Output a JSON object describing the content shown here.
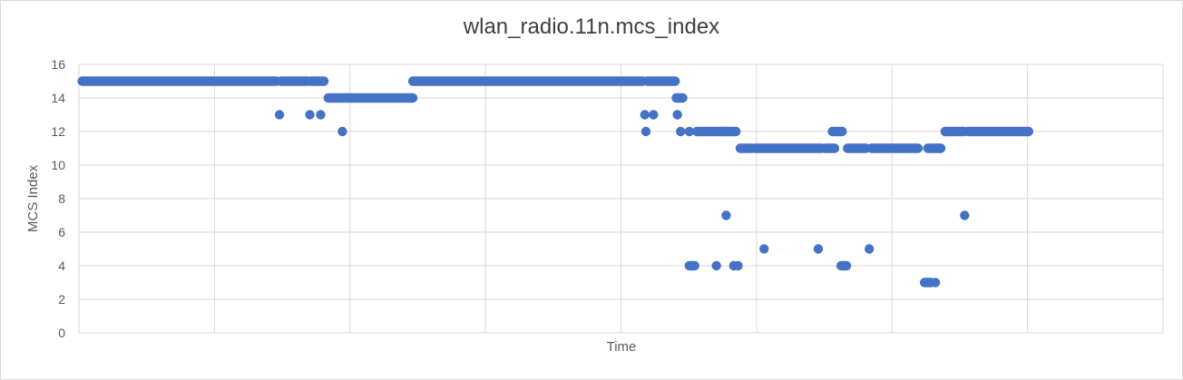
{
  "chart_data": {
    "type": "scatter",
    "title": "wlan_radio.11n.mcs_index",
    "xlabel": "Time",
    "ylabel": "MCS Index",
    "ylim": [
      0,
      16
    ],
    "yticks": [
      0,
      2,
      4,
      6,
      8,
      10,
      12,
      14,
      16
    ],
    "xlim": [
      0,
      1000
    ],
    "x_gridlines": [
      0,
      125,
      250,
      375,
      500,
      625,
      750,
      875,
      1000
    ],
    "series": [
      {
        "name": "wlan_radio.11n.mcs_index",
        "color": "#4472c4",
        "segments": [
          {
            "x_start": 3,
            "x_end": 182,
            "y": 15
          },
          {
            "x_start": 186,
            "x_end": 211,
            "y": 15
          },
          {
            "x_start": 214,
            "x_end": 226,
            "y": 15
          },
          {
            "x_start": 230,
            "x_end": 308,
            "y": 14
          },
          {
            "x_start": 308,
            "x_end": 520,
            "y": 15
          },
          {
            "x_start": 524,
            "x_end": 550,
            "y": 15
          },
          {
            "x_start": 551,
            "x_end": 557,
            "y": 14
          },
          {
            "x_start": 570,
            "x_end": 606,
            "y": 12
          },
          {
            "x_start": 610,
            "x_end": 620,
            "y": 11
          },
          {
            "x_start": 623,
            "x_end": 685,
            "y": 11
          },
          {
            "x_start": 688,
            "x_end": 697,
            "y": 11
          },
          {
            "x_start": 695,
            "x_end": 704,
            "y": 12
          },
          {
            "x_start": 709,
            "x_end": 726,
            "y": 11
          },
          {
            "x_start": 731,
            "x_end": 774,
            "y": 11
          },
          {
            "x_start": 783,
            "x_end": 795,
            "y": 11
          },
          {
            "x_start": 799,
            "x_end": 816,
            "y": 12
          },
          {
            "x_start": 820,
            "x_end": 876,
            "y": 12
          },
          {
            "x_start": 563,
            "x_end": 568,
            "y": 4
          },
          {
            "x_start": 703,
            "x_end": 708,
            "y": 4
          },
          {
            "x_start": 780,
            "x_end": 786,
            "y": 3
          }
        ],
        "points": [
          [
            185,
            13
          ],
          [
            213,
            13
          ],
          [
            223,
            13
          ],
          [
            243,
            12
          ],
          [
            522,
            13
          ],
          [
            523,
            12
          ],
          [
            530,
            13
          ],
          [
            552,
            13
          ],
          [
            555,
            12
          ],
          [
            563,
            12
          ],
          [
            588,
            4
          ],
          [
            594,
            12
          ],
          [
            597,
            7
          ],
          [
            604,
            4
          ],
          [
            608,
            4
          ],
          [
            632,
            5
          ],
          [
            682,
            5
          ],
          [
            729,
            5
          ],
          [
            790,
            3
          ],
          [
            794,
            11
          ],
          [
            817,
            7
          ]
        ]
      }
    ]
  }
}
